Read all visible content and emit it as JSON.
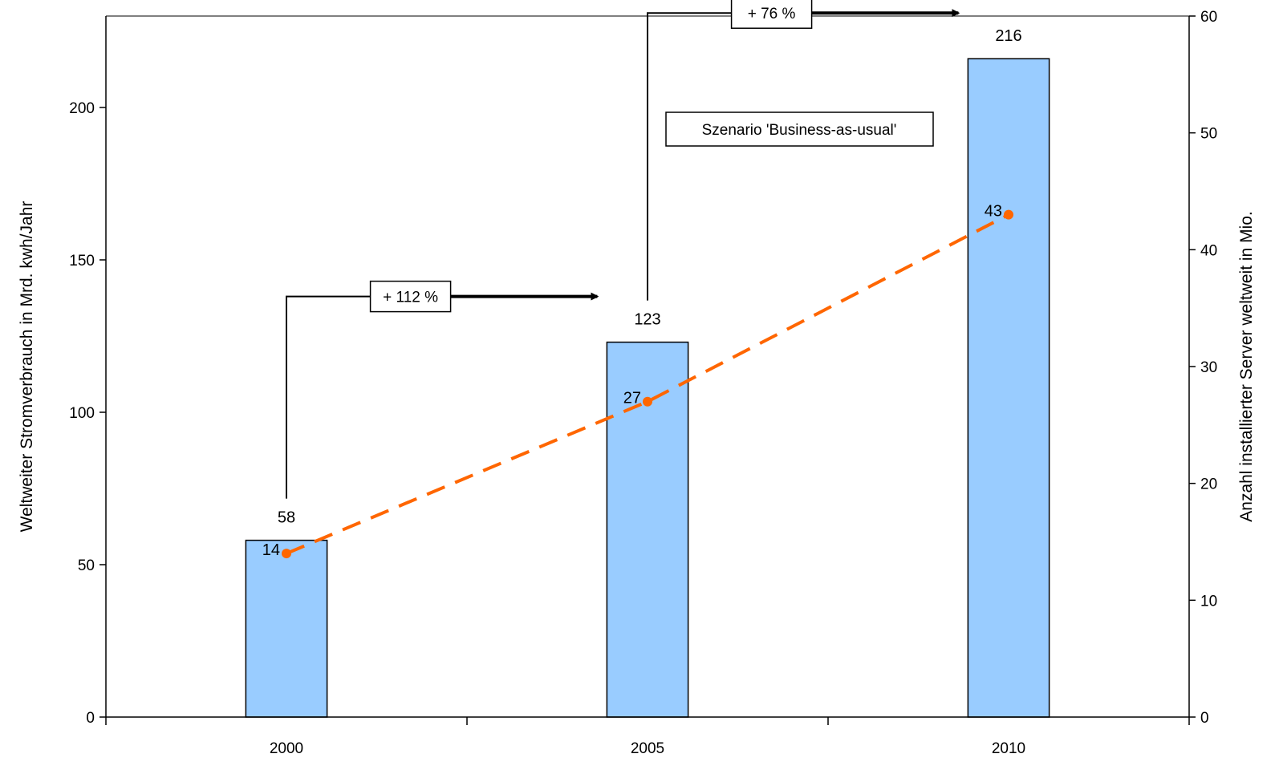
{
  "chart_data": {
    "type": "bar",
    "categories": [
      "2000",
      "2005",
      "2010"
    ],
    "xlabel": "",
    "ylabel": "Weltweiter Stromverbrauch in Mrd. kwh/Jahr",
    "y2label": "Anzahl installierter Server weltweit in Mio.",
    "ylim": [
      0,
      230
    ],
    "y2lim": [
      0,
      60
    ],
    "yticks": [
      0,
      50,
      100,
      150,
      200
    ],
    "y2ticks": [
      0,
      10,
      20,
      30,
      40,
      50,
      60
    ],
    "grid": false,
    "legend": "none",
    "series": [
      {
        "type": "bar",
        "axis": "left",
        "values": [
          58,
          123,
          216
        ],
        "labels": [
          "58",
          "123",
          "216"
        ],
        "color": "#99ccff"
      },
      {
        "type": "line",
        "axis": "right",
        "values": [
          14,
          27,
          43
        ],
        "labels": [
          "14",
          "27",
          "43"
        ],
        "color": "#ff6600",
        "style": "dashed"
      }
    ],
    "annotations": [
      {
        "id": "growth-1",
        "text": "+ 112 %",
        "from": "2000",
        "to": "2005"
      },
      {
        "id": "growth-2",
        "text": "+ 76 %",
        "from": "2005",
        "to": "2010"
      },
      {
        "id": "scenario",
        "text": "Szenario 'Business-as-usual'"
      }
    ]
  }
}
